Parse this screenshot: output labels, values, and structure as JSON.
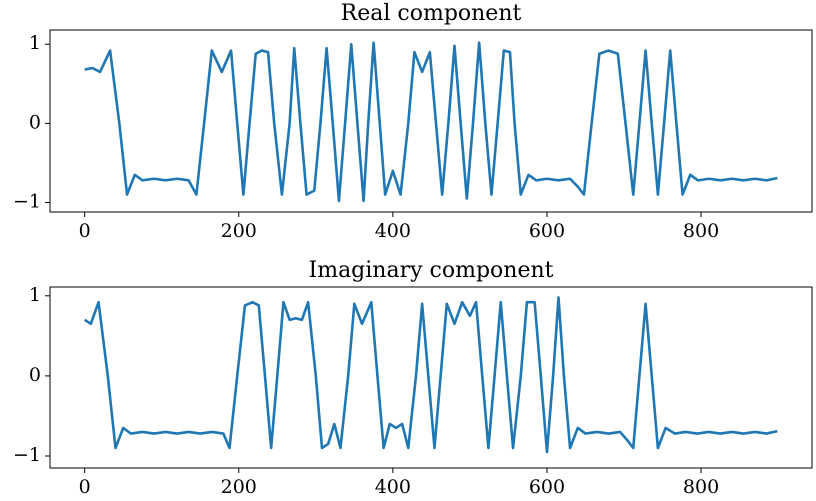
{
  "chart_data": [
    {
      "type": "line",
      "title": "Real component",
      "x": [
        0,
        10,
        20,
        33,
        45,
        55,
        65,
        75,
        90,
        105,
        120,
        135,
        145,
        155,
        165,
        178,
        190,
        198,
        206,
        214,
        222,
        230,
        238,
        246,
        256,
        266,
        272,
        280,
        288,
        298,
        306,
        314,
        322,
        330,
        338,
        346,
        354,
        362,
        368,
        375,
        383,
        390,
        400,
        410,
        420,
        428,
        438,
        448,
        456,
        464,
        472,
        480,
        488,
        496,
        504,
        512,
        520,
        528,
        536,
        544,
        552,
        558,
        566,
        576,
        586,
        600,
        615,
        630,
        640,
        648,
        658,
        668,
        680,
        692,
        702,
        712,
        720,
        728,
        736,
        744,
        752,
        760,
        768,
        776,
        786,
        796,
        810,
        825,
        840,
        855,
        870,
        885,
        899
      ],
      "series": [
        {
          "color": "#1f77b4",
          "values": [
            0.68,
            0.7,
            0.65,
            0.92,
            0,
            -0.9,
            -0.65,
            -0.72,
            -0.7,
            -0.72,
            -0.7,
            -0.72,
            -0.9,
            0,
            0.92,
            0.65,
            0.92,
            0,
            -0.9,
            0,
            0.88,
            0.92,
            0.9,
            0,
            -0.9,
            0,
            0.95,
            0,
            -0.9,
            -0.85,
            0,
            0.95,
            0,
            -0.98,
            0,
            1.0,
            0,
            -0.98,
            0,
            1.02,
            0,
            -0.9,
            -0.6,
            -0.9,
            0,
            0.9,
            0.65,
            0.9,
            0,
            -0.9,
            0,
            0.98,
            0,
            -0.95,
            0,
            1.02,
            0,
            -0.9,
            0,
            0.92,
            0.9,
            0,
            -0.9,
            -0.65,
            -0.72,
            -0.7,
            -0.72,
            -0.7,
            -0.8,
            -0.9,
            0,
            0.88,
            0.92,
            0.88,
            0,
            -0.9,
            0,
            0.92,
            0,
            -0.9,
            0,
            0.92,
            0,
            -0.9,
            -0.65,
            -0.72,
            -0.7,
            -0.72,
            -0.7,
            -0.72,
            -0.7,
            -0.72,
            -0.69
          ]
        }
      ],
      "xlim": [
        -45,
        944
      ],
      "ylim": [
        -1.12,
        1.18
      ],
      "xticks": [
        0,
        200,
        400,
        600,
        800
      ],
      "yticks": [
        {
          "value": -1,
          "label": "−1"
        },
        0,
        1
      ]
    },
    {
      "type": "line",
      "title": "Imaginary component",
      "x": [
        0,
        8,
        18,
        30,
        40,
        50,
        60,
        75,
        90,
        105,
        120,
        135,
        150,
        165,
        180,
        188,
        198,
        208,
        218,
        226,
        234,
        242,
        250,
        258,
        266,
        274,
        282,
        290,
        300,
        308,
        316,
        324,
        332,
        342,
        350,
        360,
        372,
        380,
        388,
        396,
        404,
        412,
        420,
        430,
        438,
        446,
        454,
        462,
        470,
        480,
        490,
        500,
        508,
        516,
        524,
        532,
        540,
        548,
        556,
        566,
        574,
        584,
        592,
        600,
        608,
        615,
        622,
        630,
        640,
        650,
        665,
        680,
        695,
        704,
        712,
        720,
        728,
        736,
        744,
        754,
        766,
        780,
        795,
        810,
        825,
        840,
        855,
        870,
        885,
        899
      ],
      "series": [
        {
          "color": "#1f77b4",
          "values": [
            0.7,
            0.65,
            0.92,
            0,
            -0.9,
            -0.65,
            -0.72,
            -0.7,
            -0.72,
            -0.7,
            -0.72,
            -0.7,
            -0.72,
            -0.7,
            -0.72,
            -0.9,
            0,
            0.88,
            0.92,
            0.88,
            0,
            -0.9,
            0,
            0.92,
            0.7,
            0.72,
            0.7,
            0.92,
            0,
            -0.9,
            -0.85,
            -0.6,
            -0.9,
            0,
            0.9,
            0.65,
            0.92,
            0,
            -0.9,
            -0.6,
            -0.65,
            -0.6,
            -0.9,
            0,
            0.9,
            0,
            -0.9,
            0,
            0.9,
            0.65,
            0.92,
            0.75,
            0.92,
            0,
            -0.9,
            0,
            0.92,
            0,
            -0.9,
            0,
            0.92,
            0.92,
            0,
            -0.95,
            0,
            0.98,
            0,
            -0.9,
            -0.65,
            -0.72,
            -0.7,
            -0.72,
            -0.7,
            -0.8,
            -0.9,
            0,
            0.9,
            0,
            -0.9,
            -0.65,
            -0.72,
            -0.7,
            -0.72,
            -0.7,
            -0.72,
            -0.7,
            -0.72,
            -0.7,
            -0.72,
            -0.69
          ]
        }
      ],
      "xlim": [
        -45,
        944
      ],
      "ylim": [
        -1.15,
        1.11
      ],
      "xticks": [
        0,
        200,
        400,
        600,
        800
      ],
      "yticks": [
        {
          "value": -1,
          "label": "−1"
        },
        0,
        1
      ]
    }
  ]
}
